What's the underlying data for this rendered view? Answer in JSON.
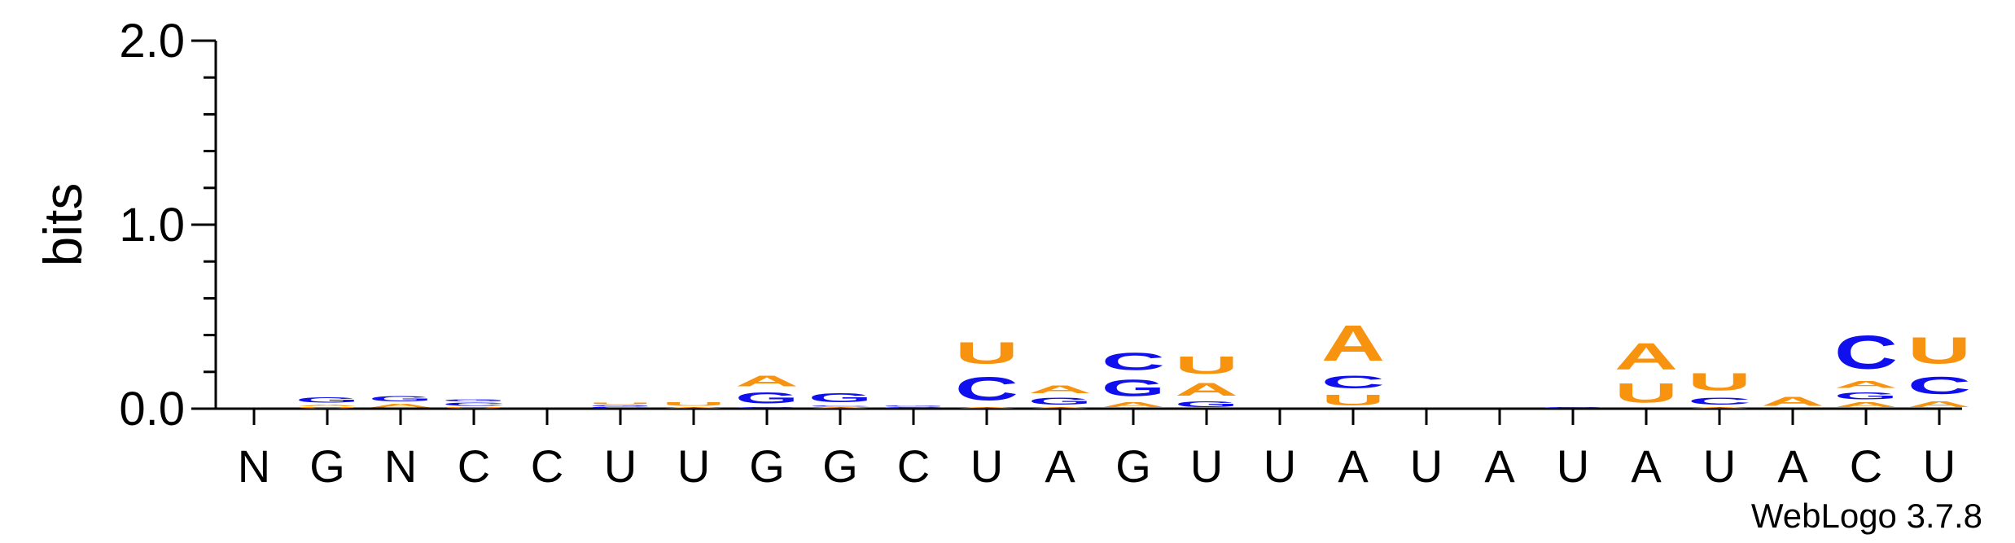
{
  "chart_data": {
    "type": "sequence-logo",
    "ylabel": "bits",
    "ylim": [
      0,
      2.0
    ],
    "y_ticks": [
      "0.0",
      "1.0",
      "2.0"
    ],
    "y_tick_values": [
      0,
      1,
      2
    ],
    "grid": false,
    "legend": "none",
    "x_labels": [
      "N",
      "G",
      "N",
      "C",
      "C",
      "U",
      "U",
      "G",
      "G",
      "C",
      "U",
      "A",
      "G",
      "U",
      "U",
      "A",
      "U",
      "A",
      "U",
      "A",
      "U",
      "A",
      "C",
      "U"
    ],
    "colors": {
      "A": "#f7930f",
      "U": "#f7930f",
      "C": "#1010ee",
      "G": "#1010ee"
    },
    "columns": [
      [],
      [
        [
          "U",
          0.01
        ],
        [
          "A",
          0.015
        ],
        [
          "G",
          0.045
        ]
      ],
      [
        [
          "A",
          0.03
        ],
        [
          "G",
          0.045
        ]
      ],
      [
        [
          "U",
          0.01
        ],
        [
          "C",
          0.025
        ],
        [
          "G",
          0.02
        ]
      ],
      [],
      [
        [
          "C",
          0.012
        ],
        [
          "G",
          0.01
        ],
        [
          "U",
          0.015
        ]
      ],
      [
        [
          "A",
          0.01
        ],
        [
          "U",
          0.03
        ]
      ],
      [
        [
          "C",
          0.01
        ],
        [
          "G",
          0.095
        ],
        [
          "A",
          0.09
        ]
      ],
      [
        [
          "A",
          0.01
        ],
        [
          "C",
          0.01
        ],
        [
          "G",
          0.08
        ]
      ],
      [
        [
          "C",
          0.008
        ],
        [
          "G",
          0.01
        ]
      ],
      [
        [
          "A",
          0.008
        ],
        [
          "C",
          0.2
        ],
        [
          "U",
          0.19
        ]
      ],
      [
        [
          "A",
          0.01
        ],
        [
          "G",
          0.06
        ],
        [
          "A",
          0.07
        ]
      ],
      [
        [
          "A",
          0.04
        ],
        [
          "G",
          0.14
        ],
        [
          "C",
          0.15
        ]
      ],
      [
        [
          "G",
          0.05
        ],
        [
          "A",
          0.11
        ],
        [
          "U",
          0.15
        ]
      ],
      [],
      [
        [
          "U",
          0.09
        ],
        [
          "C",
          0.11
        ],
        [
          "A",
          0.31
        ]
      ],
      [],
      [],
      [
        [
          "C",
          0.01
        ]
      ],
      [
        [
          "U",
          0.17
        ],
        [
          "A",
          0.23
        ]
      ],
      [
        [
          "A",
          0.01
        ],
        [
          "C",
          0.06
        ],
        [
          "U",
          0.15
        ]
      ],
      [
        [
          "A",
          0.08
        ]
      ],
      [
        [
          "A",
          0.04
        ],
        [
          "G",
          0.06
        ],
        [
          "A",
          0.06
        ],
        [
          "C",
          0.29
        ]
      ],
      [
        [
          "A",
          0.05
        ],
        [
          "C",
          0.15
        ],
        [
          "U",
          0.23
        ]
      ]
    ]
  },
  "footer": {
    "credit": "WebLogo 3.7.8"
  }
}
